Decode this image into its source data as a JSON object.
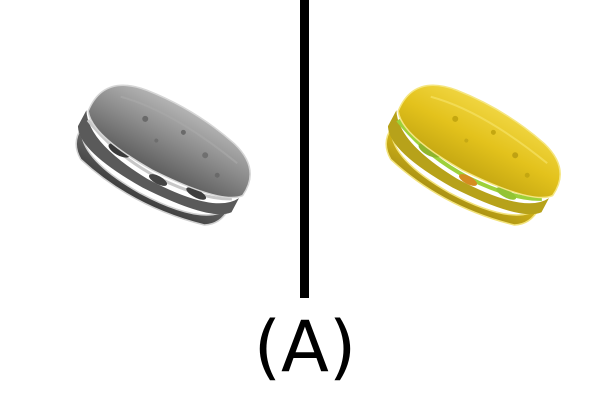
{
  "caption": "(A)",
  "panels": [
    {
      "name": "grayscale-sandwich",
      "tone": "grayscale"
    },
    {
      "name": "yellow-tinted-sandwich",
      "tone": "yellow"
    }
  ],
  "colors": {
    "background": "#ffffff",
    "divider": "#000000",
    "caption": "#000000",
    "gray_bread": "#8a8a8a",
    "gray_shadow": "#4e4e4e",
    "yellow_bread": "#e3c21c",
    "yellow_shadow": "#a99114",
    "yellow_filling": "#9dd13a"
  }
}
